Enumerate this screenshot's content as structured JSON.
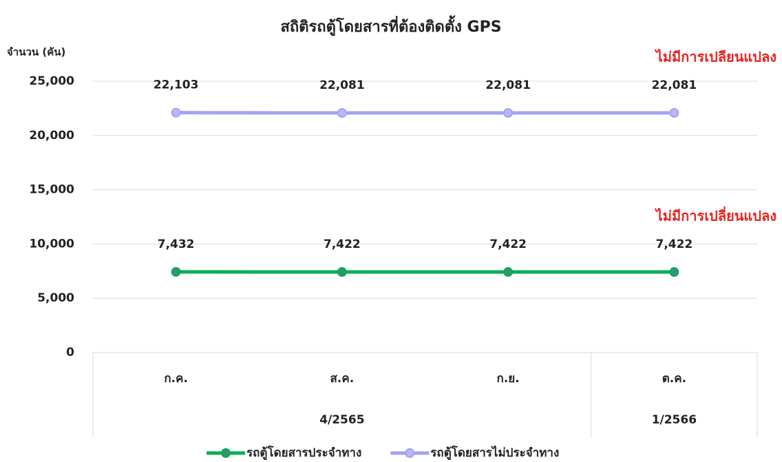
{
  "chart_data": {
    "type": "line",
    "title": "สถิติรถตู้โดยสารที่ต้องติดตั้ง GPS",
    "y_label": "จำนวน (คัน)",
    "categories": [
      "ก.ค.",
      "ส.ค.",
      "ก.ย.",
      "ต.ค."
    ],
    "groups": [
      {
        "label": "4/2565",
        "categories": [
          "ก.ค.",
          "ส.ค.",
          "ก.ย."
        ]
      },
      {
        "label": "1/2566",
        "categories": [
          "ต.ค."
        ]
      }
    ],
    "series": [
      {
        "name": "รถตู้โดยสารประจำทาง",
        "color": "#00b050",
        "marker_color": "#3a8f7c",
        "values": [
          7432,
          7422,
          7422,
          7422
        ],
        "value_labels": [
          "7,432",
          "7,422",
          "7,422",
          "7,422"
        ]
      },
      {
        "name": "รถตู้โดยสารไม่ประจำทาง",
        "color": "#a3a3f2",
        "marker_color": "#b8b8f5",
        "values": [
          22103,
          22081,
          22081,
          22081
        ],
        "value_labels": [
          "22,103",
          "22,081",
          "22,081",
          "22,081"
        ]
      }
    ],
    "annotations": [
      {
        "text": "ไม่มีการเปลียนแปลง",
        "color": "#e8231f"
      },
      {
        "text": "ไม่มีการเปลี่ยนแปลง",
        "color": "#e8231f"
      }
    ],
    "ylim": [
      0,
      25000
    ],
    "yticks": [
      0,
      {
        "value": 5000,
        "label": "5,000"
      },
      {
        "value": 10000,
        "label": "10,000"
      },
      {
        "value": 15000,
        "label": "15,000"
      },
      {
        "value": 20000,
        "label": "20,000"
      },
      {
        "value": 25000,
        "label": "25,000"
      }
    ],
    "grid": true,
    "legend": "bottom"
  }
}
